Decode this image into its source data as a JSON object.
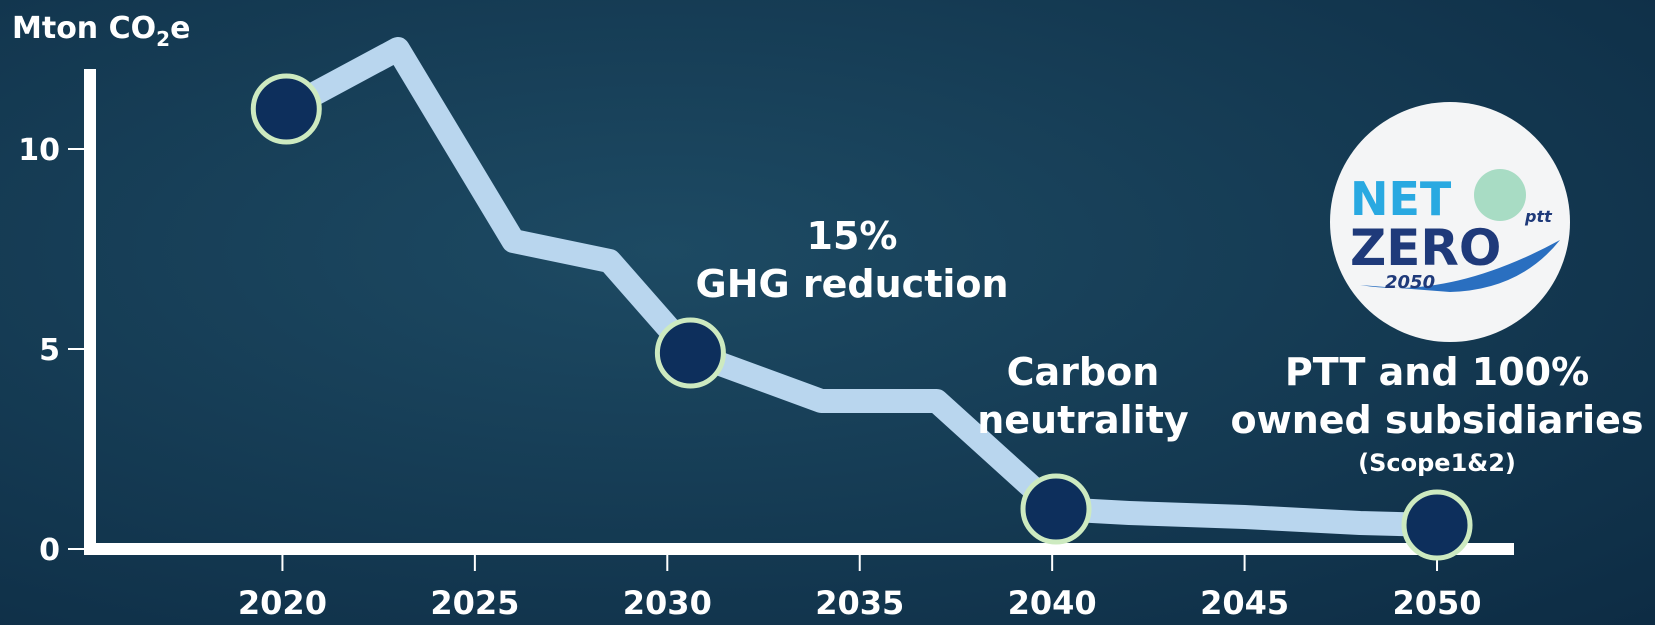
{
  "chart_data": {
    "type": "line",
    "y_label": {
      "main": "Mton CO",
      "sub": "2",
      "tail": "e"
    },
    "xlim": [
      2015,
      2052
    ],
    "xticks": [
      2020,
      2025,
      2030,
      2035,
      2040,
      2045,
      2050
    ],
    "ylim": [
      0,
      12
    ],
    "yticks": [
      0,
      5,
      10
    ],
    "series": [
      {
        "style": "line",
        "color": "#b9d6ee",
        "x": [
          2020.1,
          2023,
          2026,
          2028.5,
          2030.6,
          2034,
          2037,
          2040.1,
          2042,
          2045,
          2048,
          2050
        ],
        "values": [
          11,
          12.5,
          7.7,
          7.2,
          4.9,
          3.7,
          3.7,
          1.0,
          0.9,
          0.8,
          0.65,
          0.6
        ]
      },
      {
        "style": "marker",
        "color": "#0d2f5c",
        "x": [
          2020.1,
          2030.6,
          2040.1,
          2050
        ],
        "values": [
          11,
          4.9,
          1.0,
          0.6
        ]
      }
    ],
    "annotations": [
      {
        "lines": [
          "15%",
          "GHG reduction"
        ],
        "x": 2034.8,
        "y": 7.5
      },
      {
        "lines": [
          "Carbon",
          "neutrality"
        ],
        "x": 2040.8,
        "y": 4.1
      },
      {
        "lines": [
          "PTT and 100%",
          "owned subsidiaries"
        ],
        "note": "(Scope1&2)",
        "x": 2050,
        "y": 4.1
      }
    ],
    "logo": {
      "line1": "NET",
      "line2": "ZERO",
      "year": "2050",
      "brand": "ptt"
    }
  }
}
